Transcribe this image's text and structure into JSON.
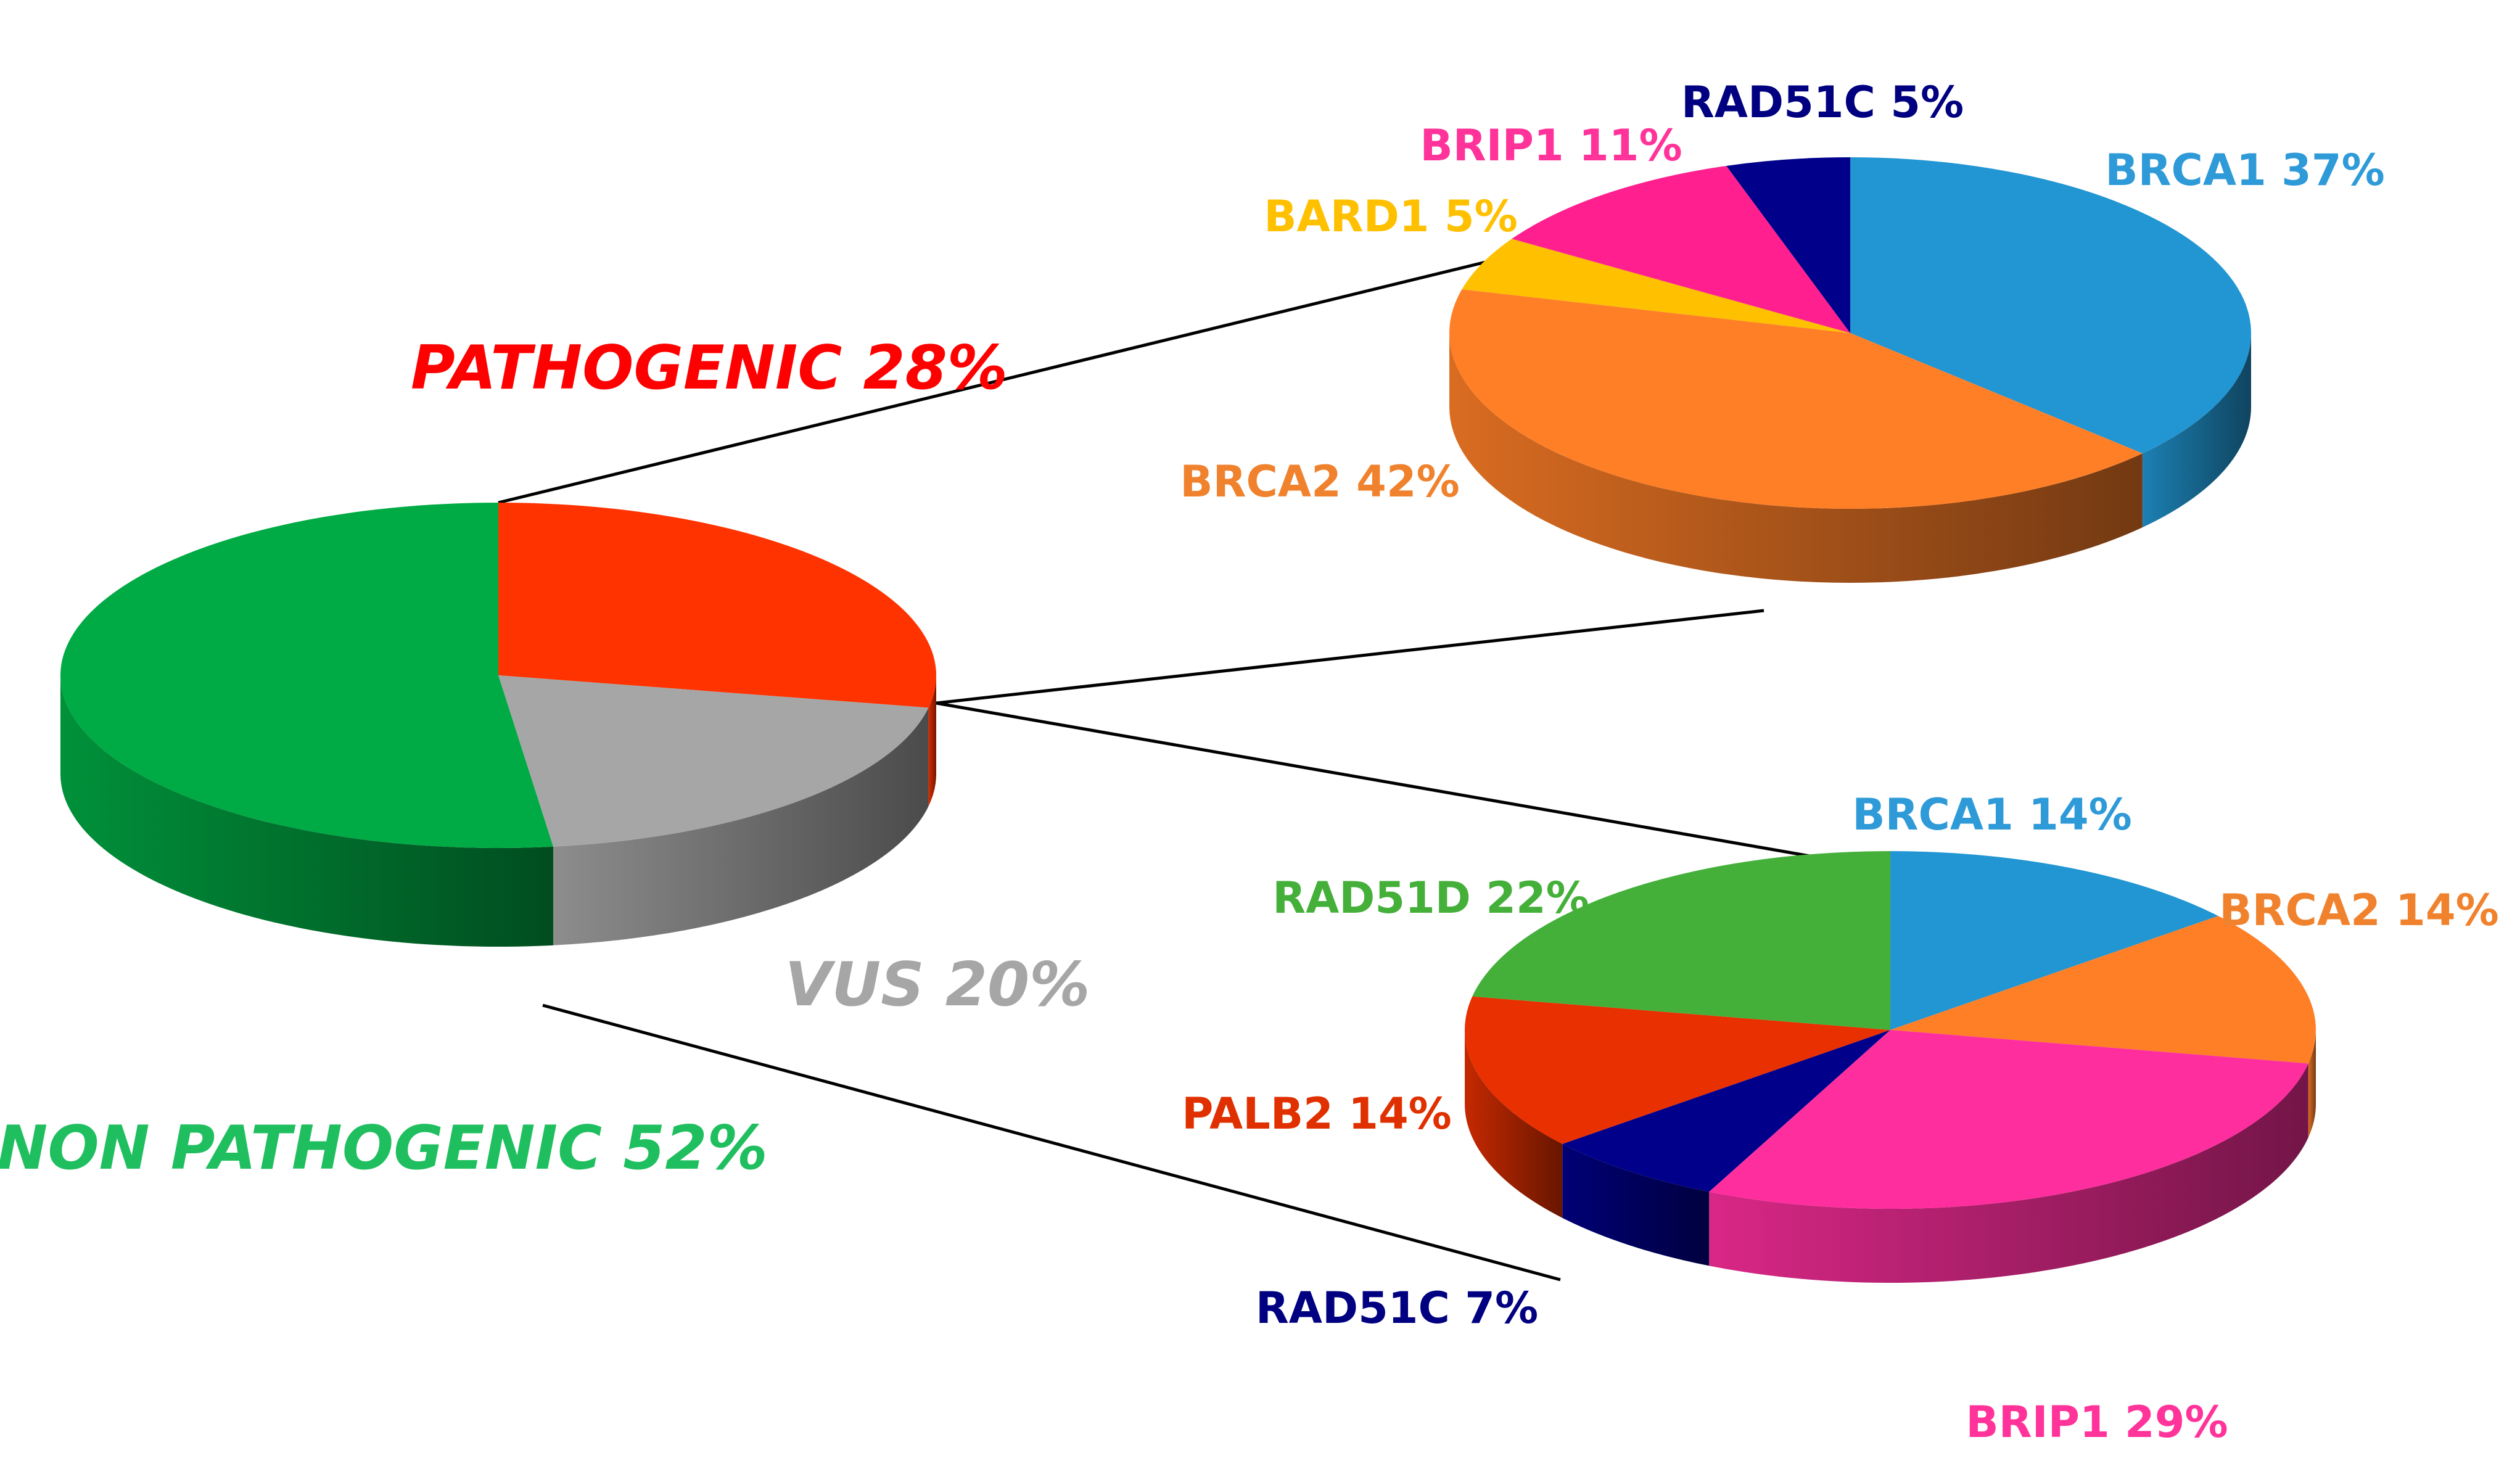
{
  "chart_data": [
    {
      "type": "pie",
      "title": "",
      "slices": [
        {
          "label": "PATHOGENIC 28%",
          "value": 28,
          "color": "#ff3300",
          "label_color": "#ff0000"
        },
        {
          "label": "VUS 20%",
          "value": 20,
          "color": "#a6a6a6",
          "label_color": "#a6a6a6"
        },
        {
          "label": "NON PATHOGENIC 52%",
          "value": 52,
          "color": "#00aa44",
          "label_color": "#1fbf5f"
        }
      ]
    },
    {
      "type": "pie",
      "title": "",
      "slices": [
        {
          "label": "BRCA1 37%",
          "value": 37,
          "color": "#2196d3",
          "label_color": "#2e9ad8"
        },
        {
          "label": "BRCA2 42%",
          "value": 42,
          "color": "#ff7f27",
          "label_color": "#f0822e"
        },
        {
          "label": "BARD1 5%",
          "value": 5,
          "color": "#ffc000",
          "label_color": "#ffc000"
        },
        {
          "label": "BRIP1 11%",
          "value": 11,
          "color": "#ff1f8f",
          "label_color": "#ff3399"
        },
        {
          "label": "RAD51C 5%",
          "value": 5,
          "color": "#00008b",
          "label_color": "#000080"
        }
      ]
    },
    {
      "type": "pie",
      "title": "",
      "slices": [
        {
          "label": "BRCA1 14%",
          "value": 14,
          "color": "#2196d3",
          "label_color": "#2e9ad8"
        },
        {
          "label": "BRCA2 14%",
          "value": 14,
          "color": "#ff7f27",
          "label_color": "#f0822e"
        },
        {
          "label": "BRIP1 29%",
          "value": 29,
          "color": "#ff2e9e",
          "label_color": "#ff3399"
        },
        {
          "label": "RAD51C 7%",
          "value": 7,
          "color": "#00008b",
          "label_color": "#000080"
        },
        {
          "label": "PALB2 14%",
          "value": 14,
          "color": "#e83000",
          "label_color": "#e03000"
        },
        {
          "label": "RAD51D 22%",
          "value": 22,
          "color": "#44b03a",
          "label_color": "#44b03a"
        }
      ]
    }
  ]
}
